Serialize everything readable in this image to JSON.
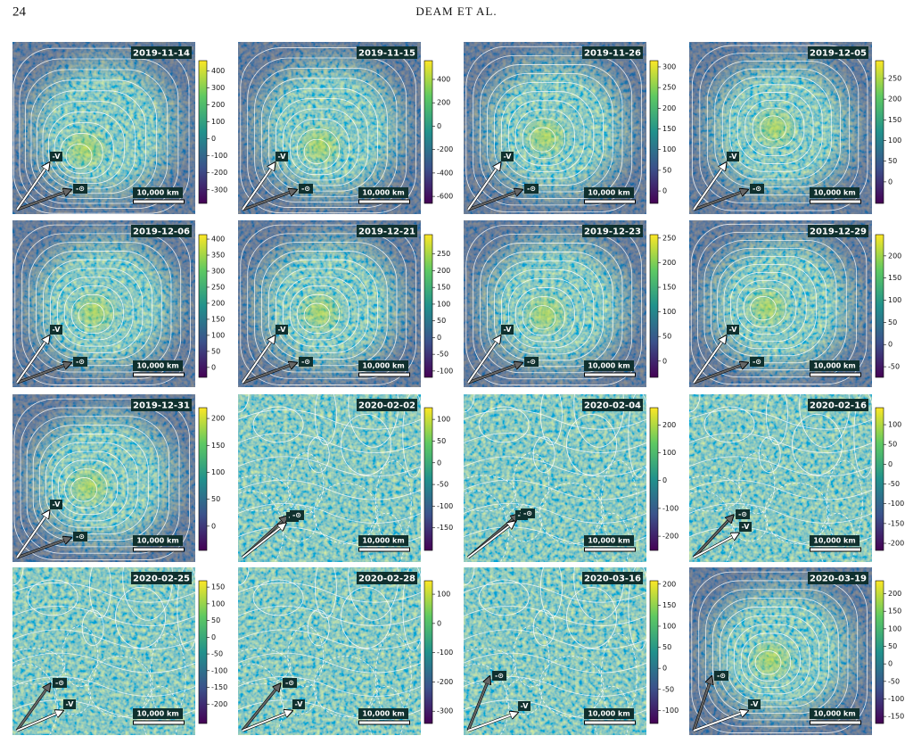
{
  "header": {
    "page_number": "24",
    "running_title": "DEAM ET AL."
  },
  "labels": {
    "velocity": "-V",
    "sun": "-⊙",
    "scale": "10,000 km"
  },
  "panels": [
    {
      "date": "2019-11-14",
      "colorbar_range": [
        -380,
        460
      ],
      "colorbar_ticks": [
        400,
        300,
        200,
        100,
        0,
        -100,
        -200,
        -300
      ]
    },
    {
      "date": "2019-11-15",
      "colorbar_range": [
        -660,
        560
      ],
      "colorbar_ticks": [
        400,
        200,
        0,
        -200,
        -400,
        -600
      ]
    },
    {
      "date": "2019-11-26",
      "colorbar_range": [
        -30,
        315
      ],
      "colorbar_ticks": [
        300,
        250,
        200,
        150,
        100,
        50,
        0
      ]
    },
    {
      "date": "2019-12-05",
      "colorbar_range": [
        -52,
        293
      ],
      "colorbar_ticks": [
        250,
        200,
        150,
        100,
        50,
        0
      ]
    },
    {
      "date": "2019-12-06",
      "colorbar_range": [
        -31,
        414
      ],
      "colorbar_ticks": [
        400,
        350,
        300,
        250,
        200,
        150,
        100,
        50,
        0
      ]
    },
    {
      "date": "2019-12-21",
      "colorbar_range": [
        -119,
        308
      ],
      "colorbar_ticks": [
        250,
        200,
        150,
        100,
        50,
        0,
        -50,
        -100
      ]
    },
    {
      "date": "2019-12-23",
      "colorbar_range": [
        -33,
        257
      ],
      "colorbar_ticks": [
        250,
        200,
        150,
        100,
        50,
        0
      ]
    },
    {
      "date": "2019-12-29",
      "colorbar_range": [
        -74,
        248
      ],
      "colorbar_ticks": [
        200,
        150,
        100,
        50,
        0,
        -50
      ]
    },
    {
      "date": "2019-12-31",
      "colorbar_range": [
        -45,
        220
      ],
      "colorbar_ticks": [
        200,
        150,
        100,
        50,
        0
      ]
    },
    {
      "date": "2020-02-02",
      "colorbar_range": [
        -202,
        127
      ],
      "colorbar_ticks": [
        100,
        50,
        0,
        -50,
        -100,
        -150
      ]
    },
    {
      "date": "2020-02-04",
      "colorbar_range": [
        -251,
        262
      ],
      "colorbar_ticks": [
        200,
        100,
        0,
        -100,
        -200
      ]
    },
    {
      "date": "2020-02-16",
      "colorbar_range": [
        -218,
        143
      ],
      "colorbar_ticks": [
        100,
        50,
        0,
        -50,
        -100,
        -150,
        -200
      ]
    },
    {
      "date": "2020-02-25",
      "colorbar_range": [
        -258,
        169
      ],
      "colorbar_ticks": [
        150,
        100,
        50,
        0,
        -50,
        -100,
        -150,
        -200
      ]
    },
    {
      "date": "2020-02-28",
      "colorbar_range": [
        -342,
        146
      ],
      "colorbar_ticks": [
        100,
        0,
        -100,
        -200,
        -300
      ]
    },
    {
      "date": "2020-03-16",
      "colorbar_range": [
        -131,
        208
      ],
      "colorbar_ticks": [
        200,
        150,
        100,
        50,
        0,
        -50,
        -100
      ]
    },
    {
      "date": "2020-03-19",
      "colorbar_range": [
        -170,
        237
      ],
      "colorbar_ticks": [
        200,
        150,
        100,
        50,
        0,
        -50,
        -100,
        -150
      ]
    }
  ]
}
